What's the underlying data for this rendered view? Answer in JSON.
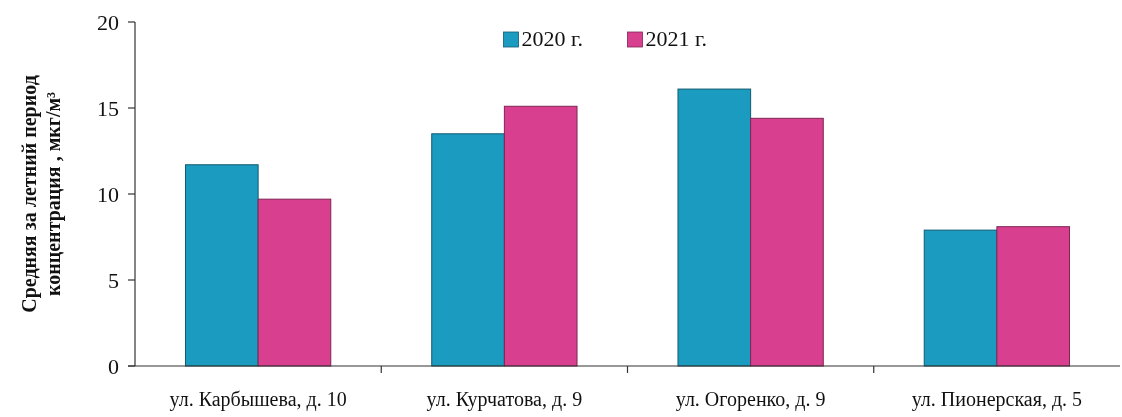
{
  "chart_data": {
    "type": "bar",
    "categories": [
      "ул. Карбышева, д. 10",
      "ул. Курчатова, д. 9",
      "ул. Огоренко, д. 9",
      "ул. Пионерская, д. 5"
    ],
    "series": [
      {
        "name": "2020 г.",
        "color": "#1b9bc0",
        "values": [
          11.7,
          13.5,
          16.1,
          7.9
        ]
      },
      {
        "name": "2021 г.",
        "color": "#d8408f",
        "values": [
          9.7,
          15.1,
          14.4,
          8.1
        ]
      }
    ],
    "ylabel": "Средняя за летний период\nконцентрация , мкг/м³",
    "ylim": [
      0,
      20
    ],
    "yticks": [
      0,
      5,
      10,
      15,
      20
    ],
    "legend": "top"
  }
}
